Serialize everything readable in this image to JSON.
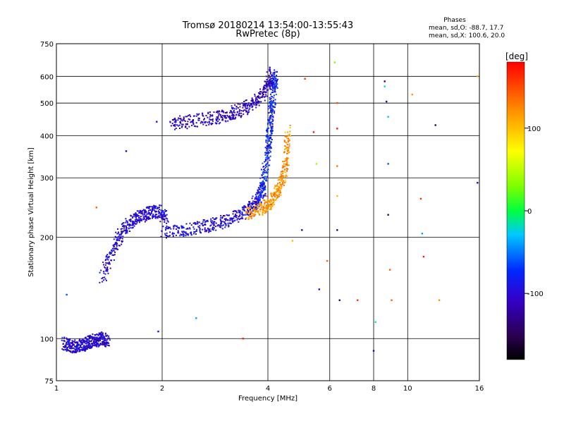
{
  "chart_data": {
    "type": "scatter",
    "title": "Tromsø 20180214 13:54:00-13:55:43",
    "subtitle": "RwPretec (8p)",
    "xlabel": "Frequency [MHz]",
    "ylabel": "Stationary phase Virtual Height [km]",
    "x_scale": "log",
    "y_scale": "log",
    "xlim": [
      1,
      16
    ],
    "ylim": [
      75,
      750
    ],
    "x_ticks": [
      1,
      2,
      4,
      6,
      8,
      10,
      16
    ],
    "x_tick_labels": [
      "1",
      "2",
      "4",
      "6",
      "8",
      "10",
      "16"
    ],
    "y_ticks": [
      75,
      100,
      200,
      300,
      400,
      500,
      600,
      750
    ],
    "y_tick_labels": [
      "75",
      "100",
      "200",
      "300",
      "400",
      "500",
      "600",
      "750"
    ],
    "grid": true,
    "phases": {
      "heading": "Phases",
      "line_o": "mean, sd,O: -88.7, 17.7",
      "line_x": "mean, sd,X: 100.6, 20.0"
    },
    "colorbar": {
      "label": "[deg]",
      "range": [
        -180,
        180
      ],
      "ticks": [
        100,
        0,
        -100
      ],
      "tick_labels": [
        "100",
        "0",
        "-100"
      ]
    },
    "traces": [
      {
        "name": "",
        "x": [
          1.05,
          1.1,
          1.15,
          1.2,
          1.25,
          1.3,
          1.35,
          1.4
        ],
        "y": [
          97,
          95,
          95,
          96,
          98,
          99,
          100,
          98
        ],
        "phase": -100
      },
      {
        "name": "",
        "x": [
          1.35,
          1.45,
          1.55,
          1.65,
          1.75,
          1.85,
          1.95,
          2.05
        ],
        "y": [
          150,
          185,
          210,
          225,
          232,
          236,
          238,
          228
        ],
        "phase": -100
      },
      {
        "name": "",
        "x": [
          2.0,
          2.3,
          2.6,
          2.9,
          3.2,
          3.5,
          3.7,
          3.9
        ],
        "y": [
          205,
          210,
          215,
          220,
          228,
          240,
          255,
          280
        ],
        "phase": -95
      },
      {
        "name": "",
        "x": [
          3.5,
          3.8,
          4.0,
          4.2,
          4.4,
          4.5,
          4.55
        ],
        "y": [
          235,
          240,
          250,
          265,
          290,
          330,
          420
        ],
        "phase": 120
      },
      {
        "name": "",
        "x": [
          3.8,
          3.9,
          4.0,
          4.05,
          4.1,
          4.15,
          4.2
        ],
        "y": [
          260,
          300,
          360,
          420,
          480,
          550,
          600
        ],
        "phase": -80
      },
      {
        "name": "",
        "x": [
          2.1,
          2.4,
          2.8,
          3.1,
          3.4,
          3.7,
          3.95,
          4.1
        ],
        "y": [
          435,
          440,
          452,
          462,
          480,
          505,
          550,
          620
        ],
        "phase": -110
      }
    ],
    "sparse_points": [
      {
        "x": 1.93,
        "y": 440,
        "phase": -90
      },
      {
        "x": 1.58,
        "y": 360,
        "phase": -110
      },
      {
        "x": 1.3,
        "y": 245,
        "phase": 140
      },
      {
        "x": 1.07,
        "y": 135,
        "phase": -60
      },
      {
        "x": 1.4,
        "y": 97,
        "phase": -110
      },
      {
        "x": 1.95,
        "y": 105,
        "phase": -90
      },
      {
        "x": 2.5,
        "y": 115,
        "phase": -40
      },
      {
        "x": 3.4,
        "y": 100,
        "phase": 170
      },
      {
        "x": 4.7,
        "y": 195,
        "phase": 100
      },
      {
        "x": 5.0,
        "y": 210,
        "phase": -120
      },
      {
        "x": 5.1,
        "y": 590,
        "phase": 160
      },
      {
        "x": 5.4,
        "y": 410,
        "phase": 170
      },
      {
        "x": 5.5,
        "y": 330,
        "phase": 40
      },
      {
        "x": 5.6,
        "y": 140,
        "phase": -100
      },
      {
        "x": 5.9,
        "y": 170,
        "phase": 140
      },
      {
        "x": 6.2,
        "y": 660,
        "phase": 30
      },
      {
        "x": 6.3,
        "y": 500,
        "phase": 150
      },
      {
        "x": 6.3,
        "y": 420,
        "phase": 170
      },
      {
        "x": 6.3,
        "y": 325,
        "phase": 130
      },
      {
        "x": 6.3,
        "y": 265,
        "phase": 100
      },
      {
        "x": 6.3,
        "y": 210,
        "phase": -140
      },
      {
        "x": 6.4,
        "y": 130,
        "phase": -140
      },
      {
        "x": 7.2,
        "y": 130,
        "phase": 160
      },
      {
        "x": 8.0,
        "y": 92,
        "phase": -130
      },
      {
        "x": 8.1,
        "y": 112,
        "phase": -10
      },
      {
        "x": 8.6,
        "y": 580,
        "phase": -130
      },
      {
        "x": 8.6,
        "y": 560,
        "phase": -20
      },
      {
        "x": 8.7,
        "y": 505,
        "phase": -120
      },
      {
        "x": 8.8,
        "y": 455,
        "phase": -30
      },
      {
        "x": 8.8,
        "y": 330,
        "phase": -60
      },
      {
        "x": 8.8,
        "y": 233,
        "phase": -140
      },
      {
        "x": 8.9,
        "y": 160,
        "phase": 140
      },
      {
        "x": 9.0,
        "y": 130,
        "phase": 140
      },
      {
        "x": 10.3,
        "y": 530,
        "phase": 120
      },
      {
        "x": 10.9,
        "y": 260,
        "phase": 160
      },
      {
        "x": 11.0,
        "y": 205,
        "phase": -40
      },
      {
        "x": 11.1,
        "y": 175,
        "phase": 170
      },
      {
        "x": 12.0,
        "y": 430,
        "phase": -150
      },
      {
        "x": 12.3,
        "y": 130,
        "phase": 120
      },
      {
        "x": 15.8,
        "y": 290,
        "phase": -120
      },
      {
        "x": 15.8,
        "y": 600,
        "phase": 110
      }
    ]
  }
}
